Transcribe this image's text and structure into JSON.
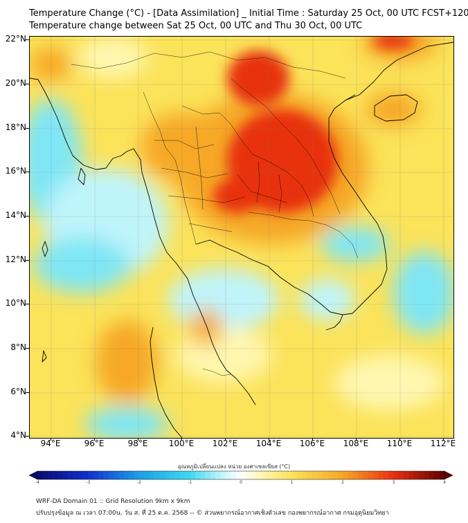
{
  "title_line1": "Temperature Change (°C) - [Data Assimilation] _ Initial Time : Saturday 25 Oct, 00 UTC FCST+120",
  "title_line2": "Temperature change between Sat 25 Oct, 00 UTC and Thu 30 Oct, 00 UTC",
  "lat_labels": [
    "22°N",
    "20°N",
    "18°N",
    "16°N",
    "14°N",
    "12°N",
    "10°N",
    "8°N",
    "6°N",
    "4°N"
  ],
  "lon_labels": [
    "94°E",
    "96°E",
    "98°E",
    "100°E",
    "102°E",
    "104°E",
    "106°E",
    "108°E",
    "110°E",
    "112°E"
  ],
  "colorbar": {
    "title": "อุณหภูมิเปลี่ยนแปลง หน่วย องศาเซลเซียส (°C)",
    "min": -4,
    "max": 4,
    "tick_labels": [
      "-4",
      "-3",
      "-2",
      "-1",
      "0",
      "1",
      "2",
      "3",
      "4"
    ],
    "colors": {
      "m4": "#0a0a6e",
      "m3": "#1030d0",
      "m2": "#1aa0e8",
      "m1": "#3fd8f0",
      "m0": "#bff4fb",
      "zero": "#ffffff",
      "p0": "#fff7b0",
      "p1": "#fbe35a",
      "p2": "#f6a825",
      "p3": "#e83010",
      "p4": "#600000"
    }
  },
  "footer_line1": "WRF-DA Domain 01 :: Grid Resolution 9km x 9km",
  "footer_line2": "ปรับปรุงข้อมูล ณ เวลา 07:00น. วัน ส. ที่ 25 ต.ค. 2568 -- © ส่วนพยากรณ์อากาศเชิงตัวเลข กองพยากรณ์อากาศ กรมอุตุนิยมวิทยา"
}
